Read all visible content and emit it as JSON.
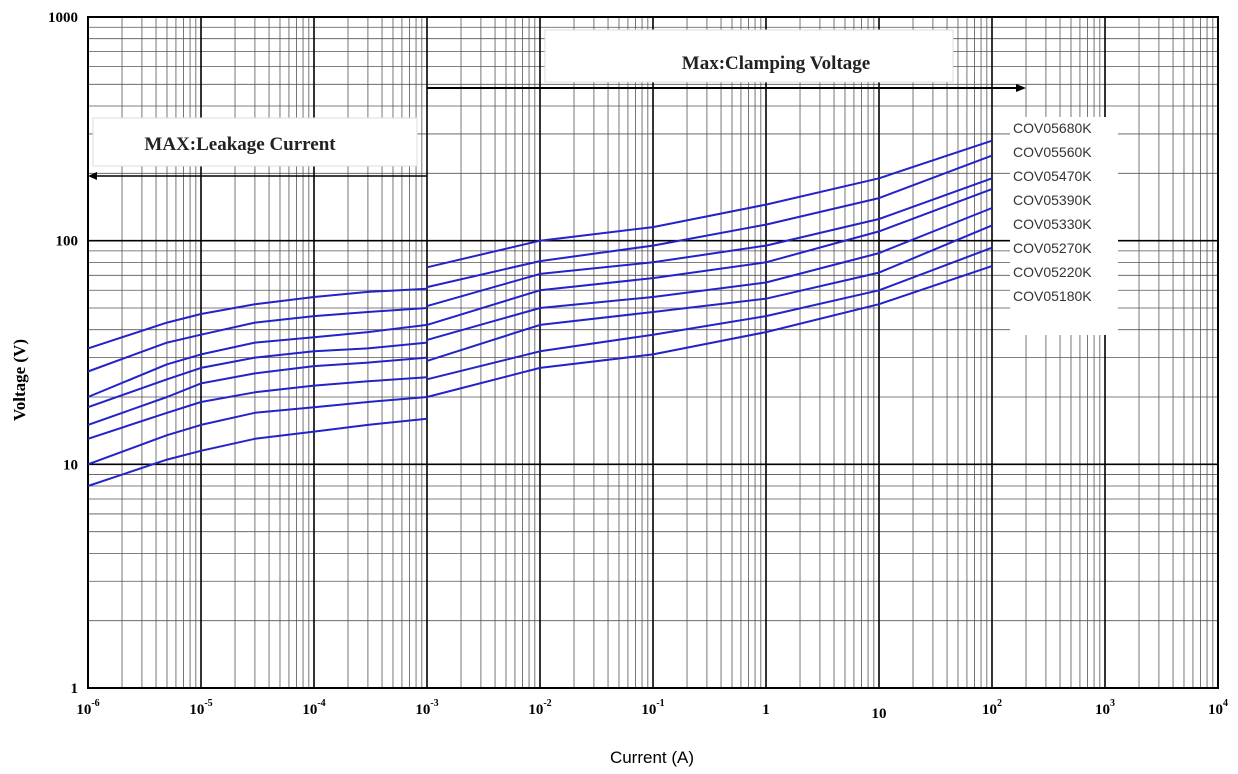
{
  "chart_data": {
    "type": "line",
    "xlabel": "Current (A)",
    "ylabel": "Voltage (V)",
    "x_scale": "log",
    "y_scale": "log",
    "xlim": [
      1e-06,
      10000
    ],
    "ylim": [
      1,
      1000
    ],
    "grid": true,
    "x_ticks": [
      {
        "value": 1e-06,
        "base": "10",
        "exp": "-6"
      },
      {
        "value": 1e-05,
        "base": "10",
        "exp": "-5"
      },
      {
        "value": 0.0001,
        "base": "10",
        "exp": "-4"
      },
      {
        "value": 0.001,
        "base": "10",
        "exp": "-3"
      },
      {
        "value": 0.01,
        "base": "10",
        "exp": "-2"
      },
      {
        "value": 0.1,
        "base": "10",
        "exp": "-1"
      },
      {
        "value": 1,
        "base": "1",
        "exp": ""
      },
      {
        "value": 10,
        "base": "10",
        "exp": ""
      },
      {
        "value": 100,
        "base": "10",
        "exp": "2"
      },
      {
        "value": 1000,
        "base": "10",
        "exp": "3"
      },
      {
        "value": 10000,
        "base": "10",
        "exp": "4"
      }
    ],
    "y_ticks": [
      {
        "value": 1,
        "label": "1"
      },
      {
        "value": 10,
        "label": "10"
      },
      {
        "value": 100,
        "label": "100"
      },
      {
        "value": 1000,
        "label": "1000"
      }
    ],
    "annotations": [
      {
        "text": "Max:Clamping Voltage",
        "arrow": "right",
        "from_x": 0.001,
        "to_x": 200,
        "y": 480
      },
      {
        "text": "MAX:Leakage Current",
        "arrow": "left",
        "from_x": 0.001,
        "to_x": 1e-06,
        "y": 220
      }
    ],
    "legend": [
      "COV05680K",
      "COV05560K",
      "COV05470K",
      "COV05390K",
      "COV05330K",
      "COV05270K",
      "COV05220K",
      "COV05180K"
    ],
    "legend_position": "right",
    "line_color": "#2323c8",
    "series": [
      {
        "name": "COV05680K",
        "leakage": {
          "x": [
            1e-06,
            5e-06,
            1e-05,
            3e-05,
            0.0001,
            0.0003,
            0.001
          ],
          "y": [
            33,
            43,
            47,
            52,
            56,
            59,
            61
          ]
        },
        "clamp": {
          "x": [
            0.001,
            0.01,
            0.1,
            1,
            10,
            100
          ],
          "y": [
            76,
            100,
            115,
            145,
            190,
            280
          ]
        }
      },
      {
        "name": "COV05560K",
        "leakage": {
          "x": [
            1e-06,
            5e-06,
            1e-05,
            3e-05,
            0.0001,
            0.0003,
            0.001
          ],
          "y": [
            26,
            35,
            38,
            43,
            46,
            48,
            50
          ]
        },
        "clamp": {
          "x": [
            0.001,
            0.01,
            0.1,
            1,
            10,
            100
          ],
          "y": [
            62,
            81,
            95,
            118,
            155,
            240
          ]
        }
      },
      {
        "name": "COV05470K",
        "leakage": {
          "x": [
            1e-06,
            5e-06,
            1e-05,
            3e-05,
            0.0001,
            0.0003,
            0.001
          ],
          "y": [
            20,
            28,
            31,
            35,
            37,
            39,
            42
          ]
        },
        "clamp": {
          "x": [
            0.001,
            0.01,
            0.1,
            1,
            10,
            100
          ],
          "y": [
            51,
            71,
            80,
            95,
            125,
            190
          ]
        }
      },
      {
        "name": "COV05390K",
        "leakage": {
          "x": [
            1e-06,
            5e-06,
            1e-05,
            3e-05,
            0.0001,
            0.0003,
            0.001
          ],
          "y": [
            18,
            24,
            27,
            30,
            32,
            33,
            35
          ]
        },
        "clamp": {
          "x": [
            0.001,
            0.01,
            0.1,
            1,
            10,
            100
          ],
          "y": [
            42,
            60,
            68,
            80,
            110,
            170
          ]
        }
      },
      {
        "name": "COV05330K",
        "leakage": {
          "x": [
            1e-06,
            5e-06,
            1e-05,
            3e-05,
            0.0001,
            0.0003,
            0.001
          ],
          "y": [
            15,
            20,
            23,
            25.5,
            27.5,
            28.5,
            30
          ]
        },
        "clamp": {
          "x": [
            0.001,
            0.01,
            0.1,
            1,
            10,
            100
          ],
          "y": [
            36,
            50,
            56,
            65,
            88,
            140
          ]
        }
      },
      {
        "name": "COV05270K",
        "leakage": {
          "x": [
            1e-06,
            5e-06,
            1e-05,
            3e-05,
            0.0001,
            0.0003,
            0.001
          ],
          "y": [
            13,
            17,
            19,
            21,
            22.5,
            23.5,
            24.5
          ]
        },
        "clamp": {
          "x": [
            0.001,
            0.01,
            0.1,
            1,
            10,
            100
          ],
          "y": [
            29,
            42,
            48,
            55,
            72,
            117
          ]
        }
      },
      {
        "name": "COV05220K",
        "leakage": {
          "x": [
            1e-06,
            5e-06,
            1e-05,
            3e-05,
            0.0001,
            0.0003,
            0.001
          ],
          "y": [
            10,
            13.5,
            15,
            17,
            18,
            19,
            20
          ]
        },
        "clamp": {
          "x": [
            0.001,
            0.01,
            0.1,
            1,
            10,
            100
          ],
          "y": [
            24,
            32,
            38,
            46,
            60,
            93
          ]
        }
      },
      {
        "name": "COV05180K",
        "leakage": {
          "x": [
            1e-06,
            5e-06,
            1e-05,
            3e-05,
            0.0001,
            0.0003,
            0.001
          ],
          "y": [
            8,
            10.5,
            11.5,
            13,
            14,
            15,
            16
          ]
        },
        "clamp": {
          "x": [
            0.001,
            0.01,
            0.1,
            1,
            10,
            100
          ],
          "y": [
            20,
            27,
            31,
            39,
            52,
            77
          ]
        }
      }
    ]
  }
}
